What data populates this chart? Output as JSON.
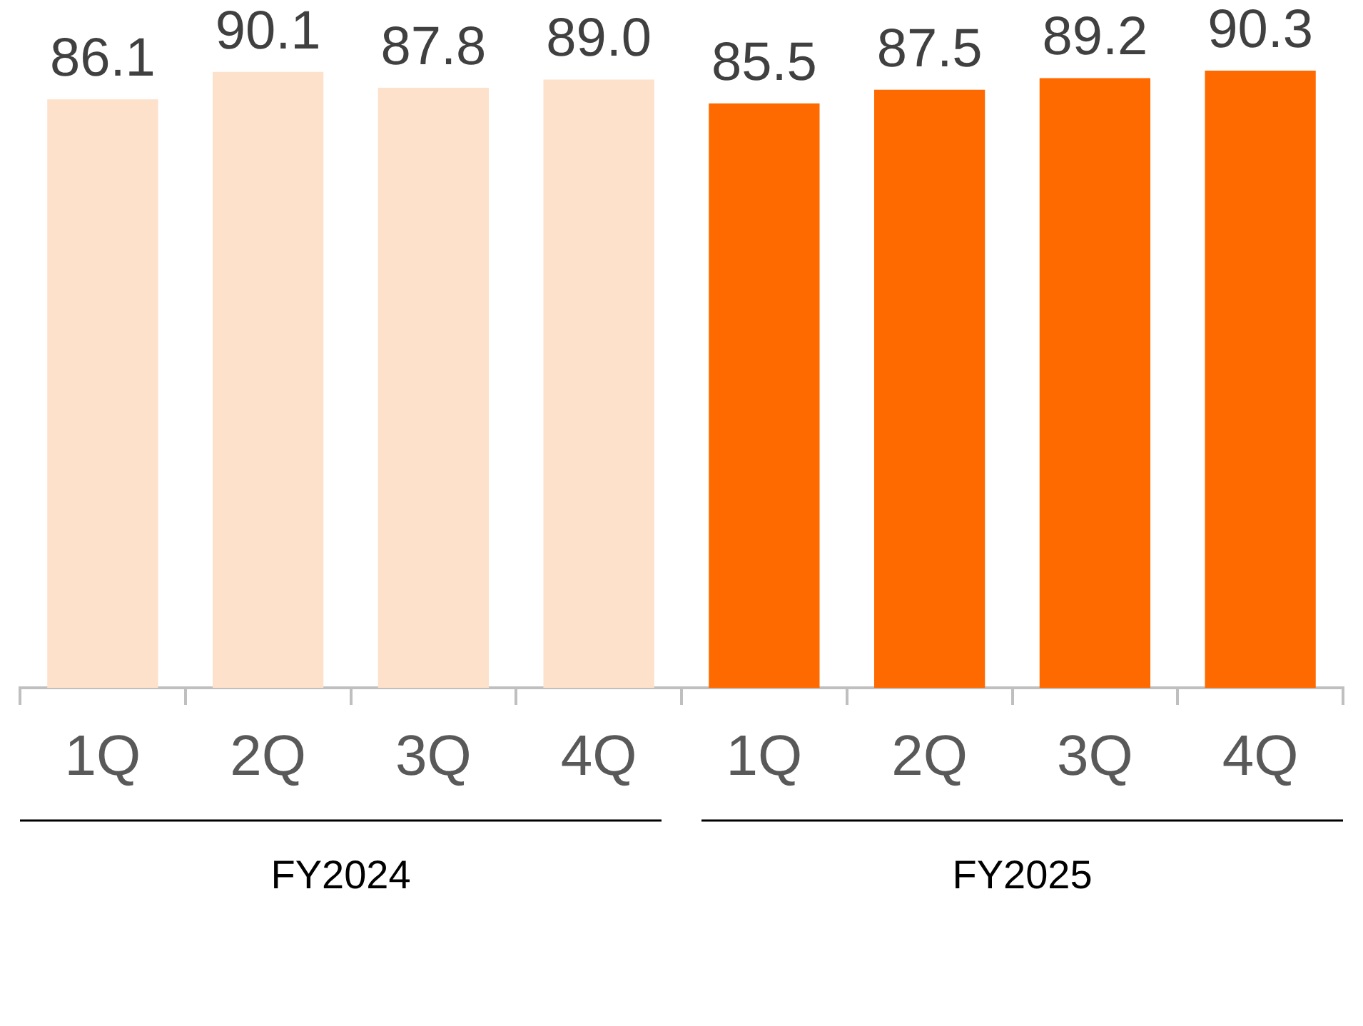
{
  "chart_data": {
    "type": "bar",
    "categories": [
      "1Q",
      "2Q",
      "3Q",
      "4Q",
      "1Q",
      "2Q",
      "3Q",
      "4Q"
    ],
    "series": [
      {
        "color": "#fde1cb",
        "values": [
          86.1,
          90.1,
          87.8,
          89.0,
          null,
          null,
          null,
          null
        ],
        "value_labels": [
          "86.1",
          "90.1",
          "87.8",
          "89.0",
          null,
          null,
          null,
          null
        ]
      },
      {
        "color": "#ff6a00",
        "values": [
          null,
          null,
          null,
          null,
          85.5,
          87.5,
          89.2,
          90.3
        ],
        "value_labels": [
          null,
          null,
          null,
          null,
          "85.5",
          "87.5",
          "89.2",
          "90.3"
        ]
      }
    ],
    "annotations": [
      "FY2024",
      "FY2025"
    ],
    "stacked": true,
    "legend": false,
    "grid": false,
    "tick_labels": "x"
  }
}
